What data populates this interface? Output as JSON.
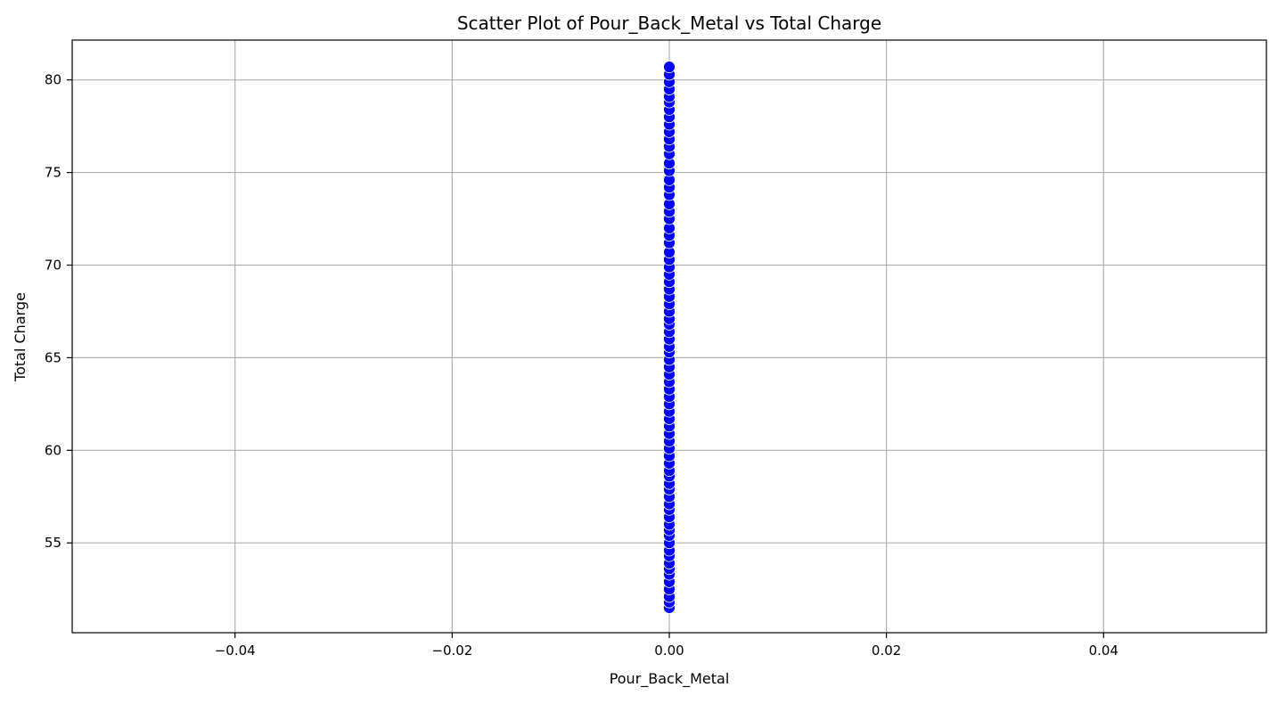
{
  "chart_data": {
    "type": "scatter",
    "title": "Scatter Plot of Pour_Back_Metal vs Total Charge",
    "xlabel": "Pour_Back_Metal",
    "ylabel": "Total Charge",
    "xlim": [
      -0.055,
      0.055
    ],
    "ylim": [
      50.15,
      82.15
    ],
    "xticks": [
      -0.04,
      -0.02,
      0.0,
      0.02,
      0.04
    ],
    "xtick_labels": [
      "−0.04",
      "−0.02",
      "0.00",
      "0.02",
      "0.04"
    ],
    "yticks": [
      55,
      60,
      65,
      70,
      75,
      80
    ],
    "ytick_labels": [
      "55",
      "60",
      "65",
      "70",
      "75",
      "80"
    ],
    "grid": true,
    "legend": "none",
    "marker_color": "#0000ff",
    "marker_edge_color": "#ffffff",
    "points": [
      {
        "x": 0,
        "y": 51.5
      },
      {
        "x": 0,
        "y": 51.8
      },
      {
        "x": 0,
        "y": 52.1
      },
      {
        "x": 0,
        "y": 52.5
      },
      {
        "x": 0,
        "y": 52.9
      },
      {
        "x": 0,
        "y": 53.3
      },
      {
        "x": 0,
        "y": 53.6
      },
      {
        "x": 0,
        "y": 53.9
      },
      {
        "x": 0,
        "y": 54.3
      },
      {
        "x": 0,
        "y": 54.6
      },
      {
        "x": 0,
        "y": 55.0
      },
      {
        "x": 0,
        "y": 55.4
      },
      {
        "x": 0,
        "y": 55.7
      },
      {
        "x": 0,
        "y": 56.0
      },
      {
        "x": 0,
        "y": 56.4
      },
      {
        "x": 0,
        "y": 56.8
      },
      {
        "x": 0,
        "y": 57.1
      },
      {
        "x": 0,
        "y": 57.5
      },
      {
        "x": 0,
        "y": 57.9
      },
      {
        "x": 0,
        "y": 58.2
      },
      {
        "x": 0,
        "y": 58.6
      },
      {
        "x": 0,
        "y": 58.9
      },
      {
        "x": 0,
        "y": 59.3
      },
      {
        "x": 0,
        "y": 59.7
      },
      {
        "x": 0,
        "y": 60.1
      },
      {
        "x": 0,
        "y": 60.5
      },
      {
        "x": 0,
        "y": 60.9
      },
      {
        "x": 0,
        "y": 61.3
      },
      {
        "x": 0,
        "y": 61.7
      },
      {
        "x": 0,
        "y": 62.1
      },
      {
        "x": 0,
        "y": 62.5
      },
      {
        "x": 0,
        "y": 62.9
      },
      {
        "x": 0,
        "y": 63.3
      },
      {
        "x": 0,
        "y": 63.7
      },
      {
        "x": 0,
        "y": 64.1
      },
      {
        "x": 0,
        "y": 64.5
      },
      {
        "x": 0,
        "y": 64.9
      },
      {
        "x": 0,
        "y": 65.3
      },
      {
        "x": 0,
        "y": 65.6
      },
      {
        "x": 0,
        "y": 66.0
      },
      {
        "x": 0,
        "y": 66.4
      },
      {
        "x": 0,
        "y": 66.8
      },
      {
        "x": 0,
        "y": 67.1
      },
      {
        "x": 0,
        "y": 67.5
      },
      {
        "x": 0,
        "y": 67.9
      },
      {
        "x": 0,
        "y": 68.3
      },
      {
        "x": 0,
        "y": 68.7
      },
      {
        "x": 0,
        "y": 69.1
      },
      {
        "x": 0,
        "y": 69.5
      },
      {
        "x": 0,
        "y": 69.9
      },
      {
        "x": 0,
        "y": 70.3
      },
      {
        "x": 0,
        "y": 70.7
      },
      {
        "x": 0,
        "y": 71.2
      },
      {
        "x": 0,
        "y": 71.6
      },
      {
        "x": 0,
        "y": 72.0
      },
      {
        "x": 0,
        "y": 72.5
      },
      {
        "x": 0,
        "y": 72.9
      },
      {
        "x": 0,
        "y": 73.3
      },
      {
        "x": 0,
        "y": 73.8
      },
      {
        "x": 0,
        "y": 74.2
      },
      {
        "x": 0,
        "y": 74.6
      },
      {
        "x": 0,
        "y": 75.1
      },
      {
        "x": 0,
        "y": 75.5
      },
      {
        "x": 0,
        "y": 76.0
      },
      {
        "x": 0,
        "y": 76.4
      },
      {
        "x": 0,
        "y": 76.8
      },
      {
        "x": 0,
        "y": 77.2
      },
      {
        "x": 0,
        "y": 77.6
      },
      {
        "x": 0,
        "y": 78.0
      },
      {
        "x": 0,
        "y": 78.4
      },
      {
        "x": 0,
        "y": 78.8
      },
      {
        "x": 0,
        "y": 79.1
      },
      {
        "x": 0,
        "y": 79.5
      },
      {
        "x": 0,
        "y": 79.9
      },
      {
        "x": 0,
        "y": 80.3
      },
      {
        "x": 0,
        "y": 80.7
      }
    ]
  }
}
